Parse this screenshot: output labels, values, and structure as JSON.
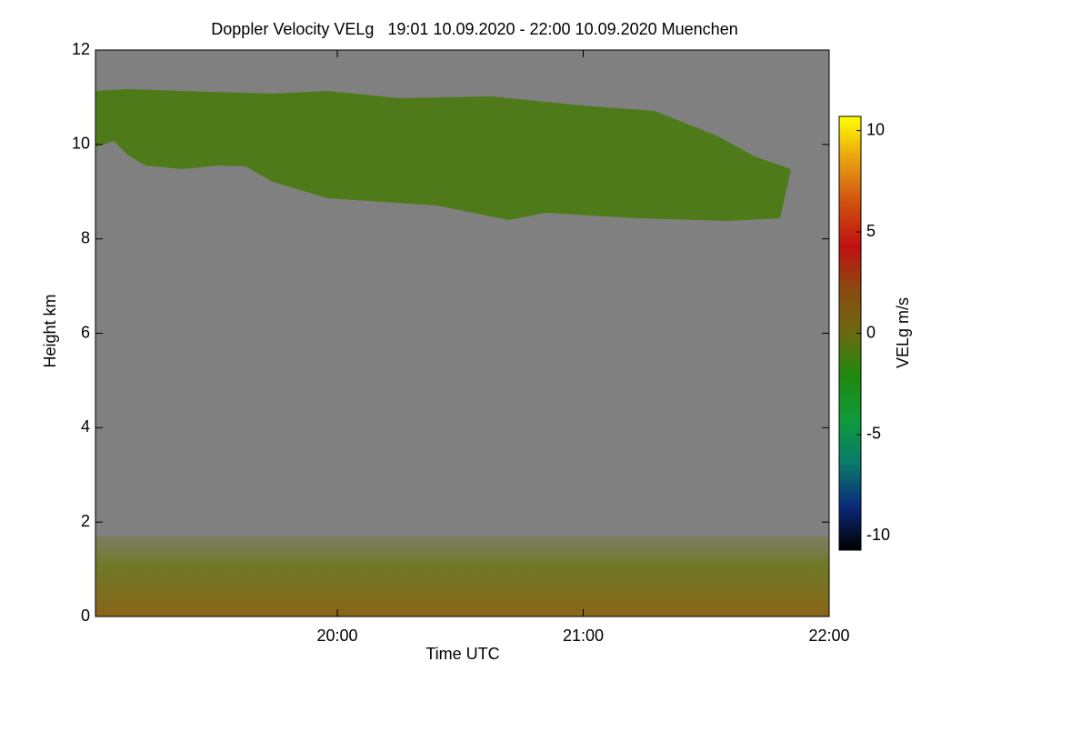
{
  "chart_data": {
    "type": "heatmap",
    "title": "Doppler Velocity VELg   19:01 10.09.2020 - 22:00 10.09.2020 Muenchen",
    "xlabel": "Time UTC",
    "ylabel": "Height km",
    "xlim": [
      1141,
      1320
    ],
    "xticks": [
      {
        "value": 1200,
        "label": "20:00"
      },
      {
        "value": 1260,
        "label": "21:00"
      },
      {
        "value": 1320,
        "label": "22:00"
      }
    ],
    "ylim": [
      0,
      12
    ],
    "yticks": [
      0,
      2,
      4,
      6,
      8,
      10,
      12
    ],
    "background": "#808080",
    "colorbar": {
      "label": "VELg m/s",
      "lim": [
        -10.7,
        10.7
      ],
      "ticks": [
        -10,
        -5,
        0,
        5,
        10
      ],
      "colors": [
        "#000000",
        "#0a2a7a",
        "#0a7a6a",
        "#0f9a3a",
        "#1f8a10",
        "#6a6a10",
        "#8a4a10",
        "#c01010",
        "#d05010",
        "#e8a010",
        "#ffff00"
      ]
    }
  }
}
